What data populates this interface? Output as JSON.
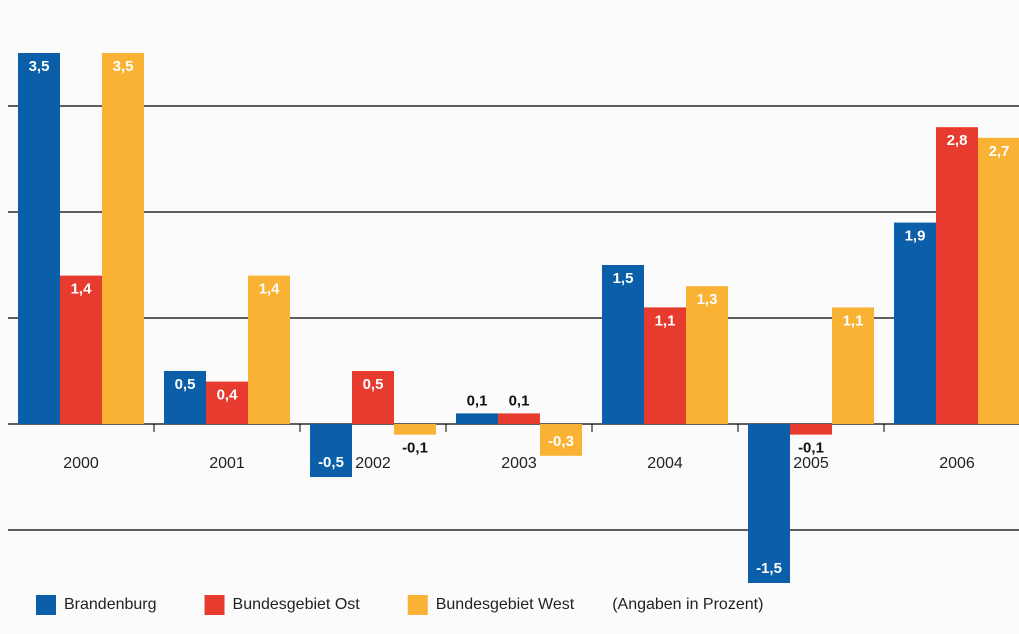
{
  "chart_data": {
    "type": "bar",
    "categories": [
      "2000",
      "2001",
      "2002",
      "2003",
      "2004",
      "2005",
      "2006"
    ],
    "series": [
      {
        "name": "Brandenburg",
        "color": "#0b5ea8",
        "values": [
          3.5,
          0.5,
          -0.5,
          0.1,
          1.5,
          -1.5,
          1.9
        ],
        "value_labels": [
          "3,5",
          "0,5",
          "-0,5",
          "0,1",
          "1,5",
          "-1,5",
          "1,9"
        ]
      },
      {
        "name": "Bundesgebiet Ost",
        "color": "#e63b2e",
        "values": [
          1.4,
          0.4,
          0.5,
          0.1,
          1.1,
          -0.1,
          2.8
        ],
        "value_labels": [
          "1,4",
          "0,4",
          "0,5",
          "0,1",
          "1,1",
          "-0,1",
          "2,8"
        ]
      },
      {
        "name": "Bundesgebiet West",
        "color": "#f9b234",
        "values": [
          3.5,
          1.4,
          -0.1,
          -0.3,
          1.3,
          1.1,
          2.7
        ],
        "value_labels": [
          "3,5",
          "1,4",
          "-0,1",
          "-0,3",
          "1,3",
          "1,1",
          "2,7"
        ]
      }
    ],
    "note": "(Angaben in Prozent)",
    "ylim": [
      -1.5,
      4
    ],
    "yticks": [
      -1,
      0,
      1,
      2,
      3
    ],
    "grid": true
  }
}
